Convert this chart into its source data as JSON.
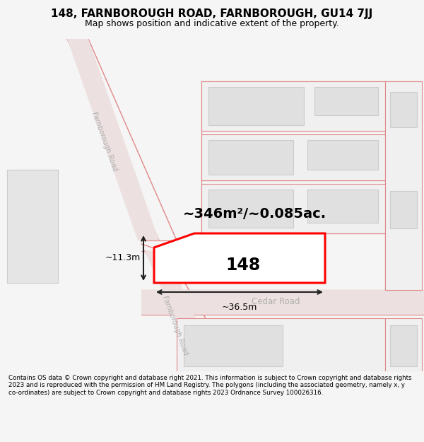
{
  "title_line1": "148, FARNBOROUGH ROAD, FARNBOROUGH, GU14 7JJ",
  "title_line2": "Map shows position and indicative extent of the property.",
  "footer_text": "Contains OS data © Crown copyright and database right 2021. This information is subject to Crown copyright and database rights 2023 and is reproduced with the permission of HM Land Registry. The polygons (including the associated geometry, namely x, y co-ordinates) are subject to Crown copyright and database rights 2023 Ordnance Survey 100026316.",
  "bg_color": "#f5f5f5",
  "map_bg": "#ffffff",
  "highlight_color": "#ff0000",
  "highlight_fill": "#ffffff",
  "dimension_color": "#222222",
  "area_text": "~346m²/~0.085ac.",
  "number_text": "148",
  "dim_width": "~36.5m",
  "dim_height": "~11.3m"
}
